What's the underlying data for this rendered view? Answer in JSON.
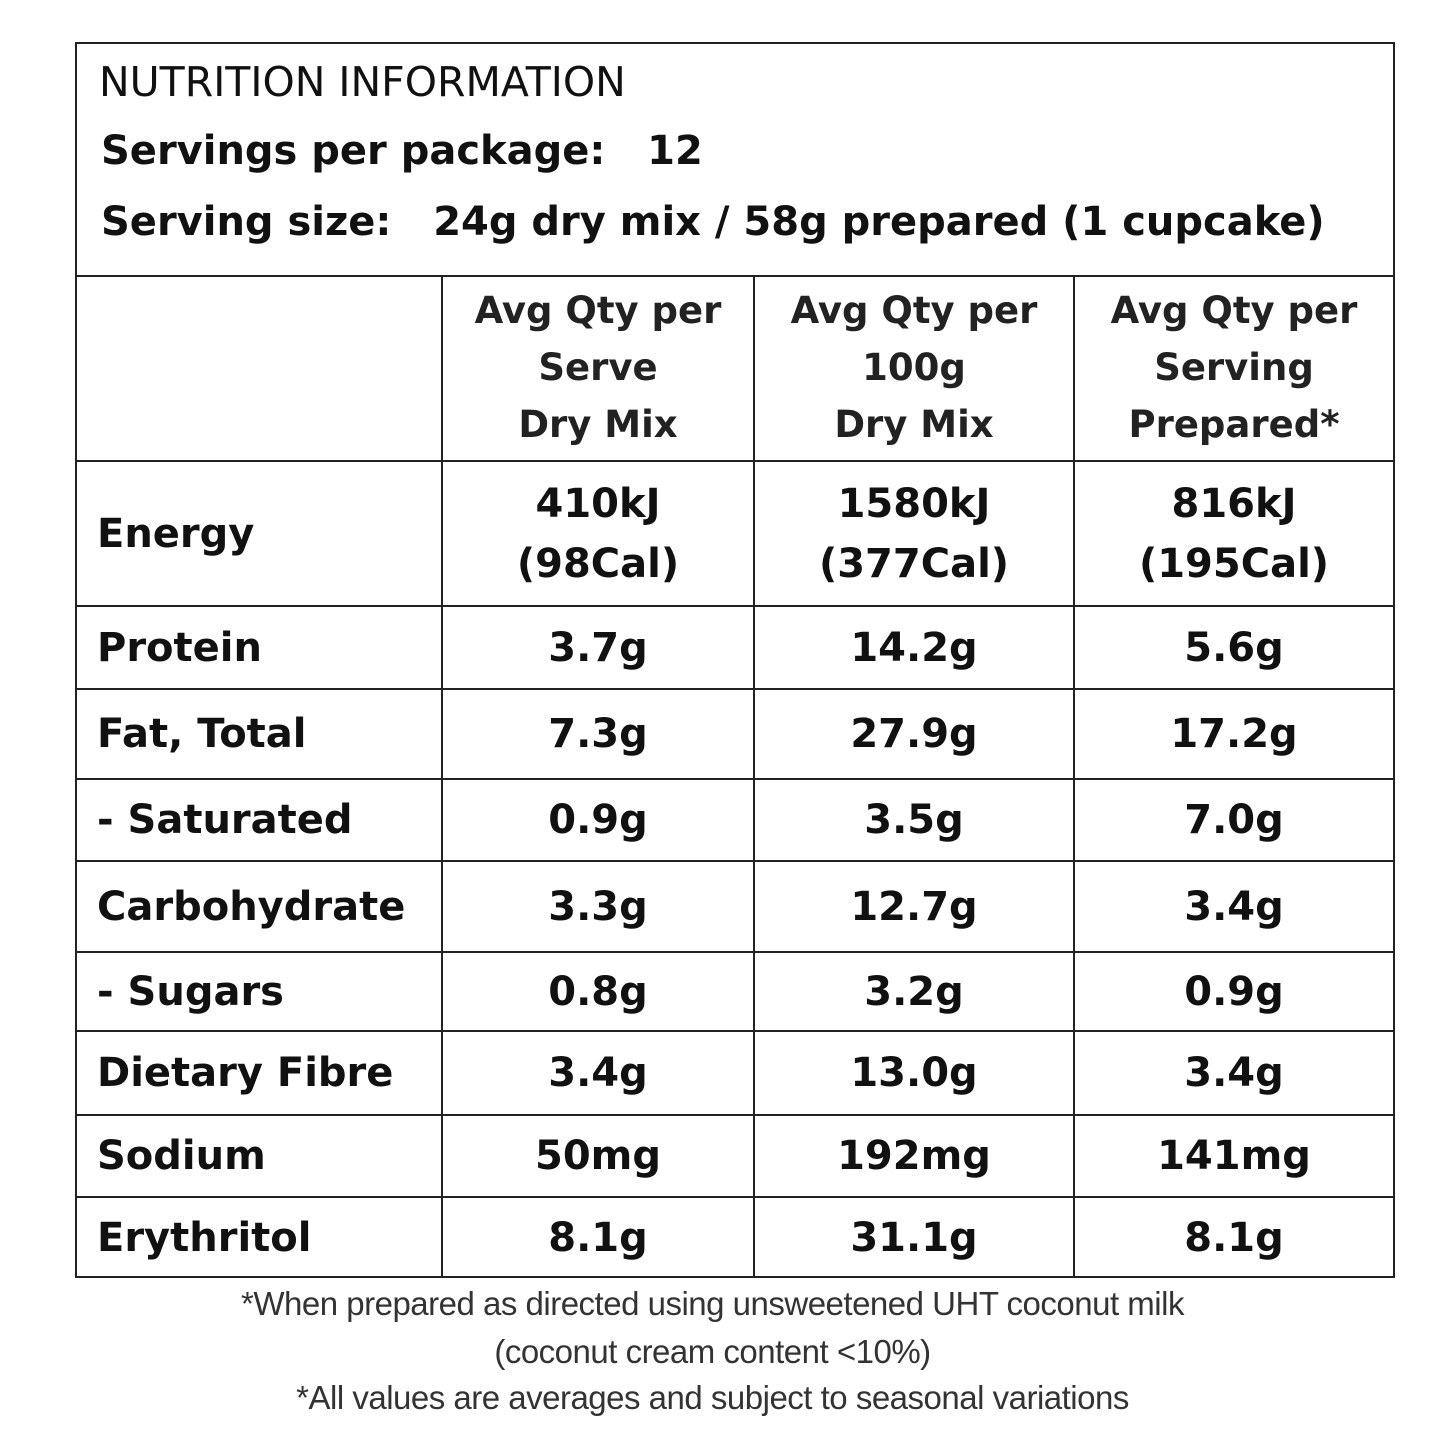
{
  "title": "NUTRITION INFORMATION",
  "servings_line": "Servings per package:   12",
  "serving_size_line": "Serving size:   24g dry mix / 58g prepared (1 cupcake)",
  "columns": [
    [
      "Avg Qty per",
      "Serve",
      "Dry Mix"
    ],
    [
      "Avg Qty per",
      "100g",
      "Dry Mix"
    ],
    [
      "Avg Qty per",
      "Serving",
      "Prepared*"
    ]
  ],
  "rows": [
    {
      "name": "Energy",
      "values": [
        [
          "410kJ",
          "(98Cal)"
        ],
        [
          "1580kJ",
          "(377Cal)"
        ],
        [
          "816kJ",
          "(195Cal)"
        ]
      ]
    },
    {
      "name": "Protein",
      "values": [
        [
          "3.7g"
        ],
        [
          "14.2g"
        ],
        [
          "5.6g"
        ]
      ]
    },
    {
      "name": "Fat, Total",
      "values": [
        [
          "7.3g"
        ],
        [
          "27.9g"
        ],
        [
          "17.2g"
        ]
      ]
    },
    {
      "name": "- Saturated",
      "values": [
        [
          "0.9g"
        ],
        [
          "3.5g"
        ],
        [
          "7.0g"
        ]
      ]
    },
    {
      "name": "Carbohydrate",
      "values": [
        [
          "3.3g"
        ],
        [
          "12.7g"
        ],
        [
          "3.4g"
        ]
      ]
    },
    {
      "name": "- Sugars",
      "values": [
        [
          "0.8g"
        ],
        [
          "3.2g"
        ],
        [
          "0.9g"
        ]
      ]
    },
    {
      "name": "Dietary Fibre",
      "values": [
        [
          "3.4g"
        ],
        [
          "13.0g"
        ],
        [
          "3.4g"
        ]
      ]
    },
    {
      "name": "Sodium",
      "values": [
        [
          "50mg"
        ],
        [
          "192mg"
        ],
        [
          "141mg"
        ]
      ]
    },
    {
      "name": "Erythritol",
      "values": [
        [
          "8.1g"
        ],
        [
          "31.1g"
        ],
        [
          "8.1g"
        ]
      ]
    }
  ],
  "footnotes": [
    "*When prepared as directed using unsweetened UHT coconut milk",
    "(coconut cream content <10%)",
    "*All values are averages and subject to seasonal variations"
  ]
}
